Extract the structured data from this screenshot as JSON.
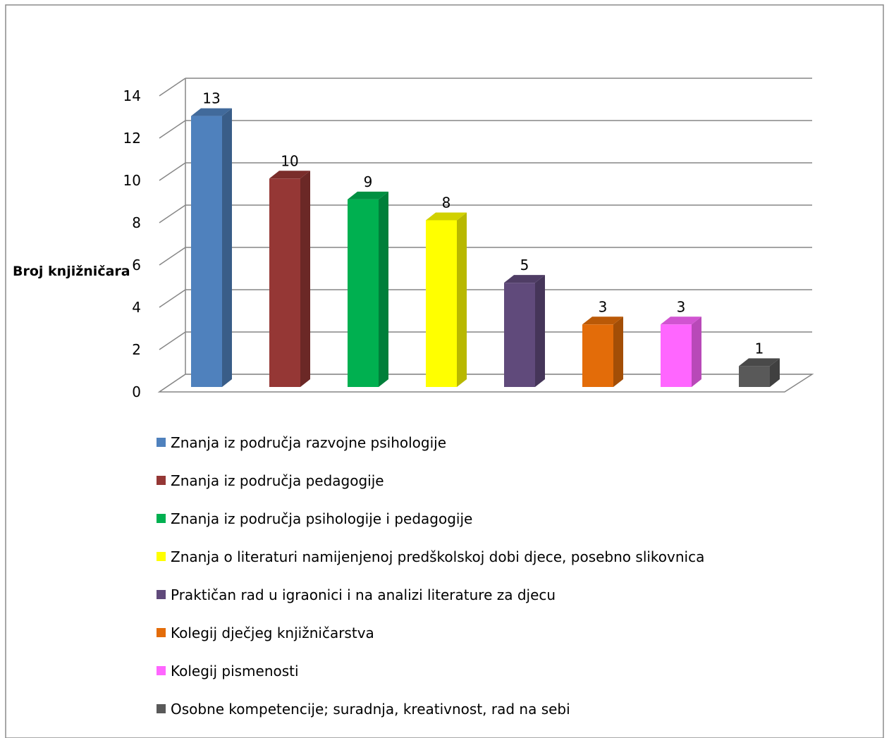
{
  "chart_data": {
    "type": "bar",
    "style": "3d-clustered-column",
    "title": "",
    "ylabel": "Broj knjižničara",
    "xlabel": "",
    "ylim": [
      0,
      14
    ],
    "y_ticks": [
      "0",
      "2",
      "4",
      "6",
      "8",
      "10",
      "12",
      "14"
    ],
    "grid": true,
    "legend_position": "bottom",
    "series": [
      {
        "name": "Znanja iz područja razvojne psihologije",
        "value": 13,
        "label": "13",
        "color": "#4F81BD"
      },
      {
        "name": "Znanja iz područja pedagogije",
        "value": 10,
        "label": "10",
        "color": "#953735"
      },
      {
        "name": "Znanja iz područja psihologije i pedagogije",
        "value": 9,
        "label": "9",
        "color": "#00B050"
      },
      {
        "name": "Znanja o literaturi namijenjenoj predškolskoj dobi djece, posebno slikovnica",
        "value": 8,
        "label": "8",
        "color": "#FFFF00"
      },
      {
        "name": "Praktičan rad u igraonici i na analizi literature za djecu",
        "value": 5,
        "label": "5",
        "color": "#604A7B"
      },
      {
        "name": "Kolegij dječjeg knjižničarstva",
        "value": 3,
        "label": "3",
        "color": "#E36C09"
      },
      {
        "name": "Kolegij pismenosti",
        "value": 3,
        "label": "3",
        "color": "#FF66FF"
      },
      {
        "name": "Osobne kompetencije; suradnja, kreativnost, rad na sebi",
        "value": 1,
        "label": "1",
        "color": "#595959"
      }
    ]
  }
}
